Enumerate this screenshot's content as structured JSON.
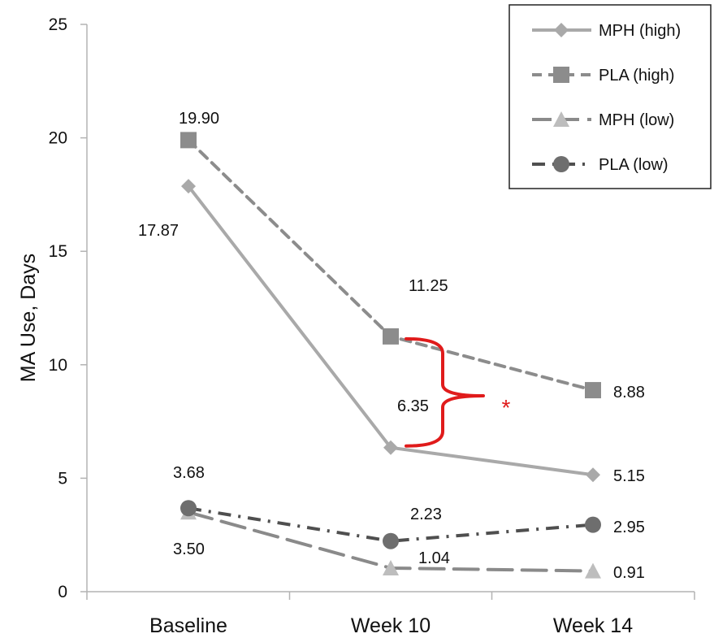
{
  "chart_data": {
    "type": "line",
    "title": "",
    "xlabel": "",
    "ylabel": "MA Use, Days",
    "ylim": [
      0,
      25
    ],
    "yticks": [
      0,
      5,
      10,
      15,
      20,
      25
    ],
    "categories": [
      "Baseline",
      "Week 10",
      "Week 14"
    ],
    "grid": false,
    "legend_position": "top-right",
    "series": [
      {
        "name": "MPH (high)",
        "values": [
          17.87,
          6.35,
          5.15
        ],
        "color": "#a9a9a9",
        "marker": "diamond",
        "line_style": "solid"
      },
      {
        "name": "PLA (high)",
        "values": [
          19.9,
          11.25,
          8.88
        ],
        "color": "#8c8c8c",
        "marker": "square",
        "line_style": "dashed"
      },
      {
        "name": "MPH (low)",
        "values": [
          3.5,
          1.04,
          0.91
        ],
        "color": "#8a8a8a",
        "marker_color": "#bdbdbd",
        "marker": "triangle",
        "line_style": "long-dash"
      },
      {
        "name": "PLA (low)",
        "values": [
          3.68,
          2.23,
          2.95
        ],
        "color": "#4f4f4f",
        "marker_color": "#6e6e6e",
        "marker": "circle",
        "line_style": "dash-dot"
      }
    ],
    "data_labels": [
      {
        "text": "17.87"
      },
      {
        "text": "19.90"
      },
      {
        "text": "11.25"
      },
      {
        "text": "6.35"
      },
      {
        "text": "8.88"
      },
      {
        "text": "5.15"
      },
      {
        "text": "3.68"
      },
      {
        "text": "3.50"
      },
      {
        "text": "2.23"
      },
      {
        "text": "1.04"
      },
      {
        "text": "2.95"
      },
      {
        "text": "0.91"
      }
    ],
    "annotation": {
      "type": "brace",
      "between": [
        "PLA (high)",
        "MPH (high)"
      ],
      "category": "Week 10",
      "label": "*",
      "color": "#e01b1b"
    }
  }
}
